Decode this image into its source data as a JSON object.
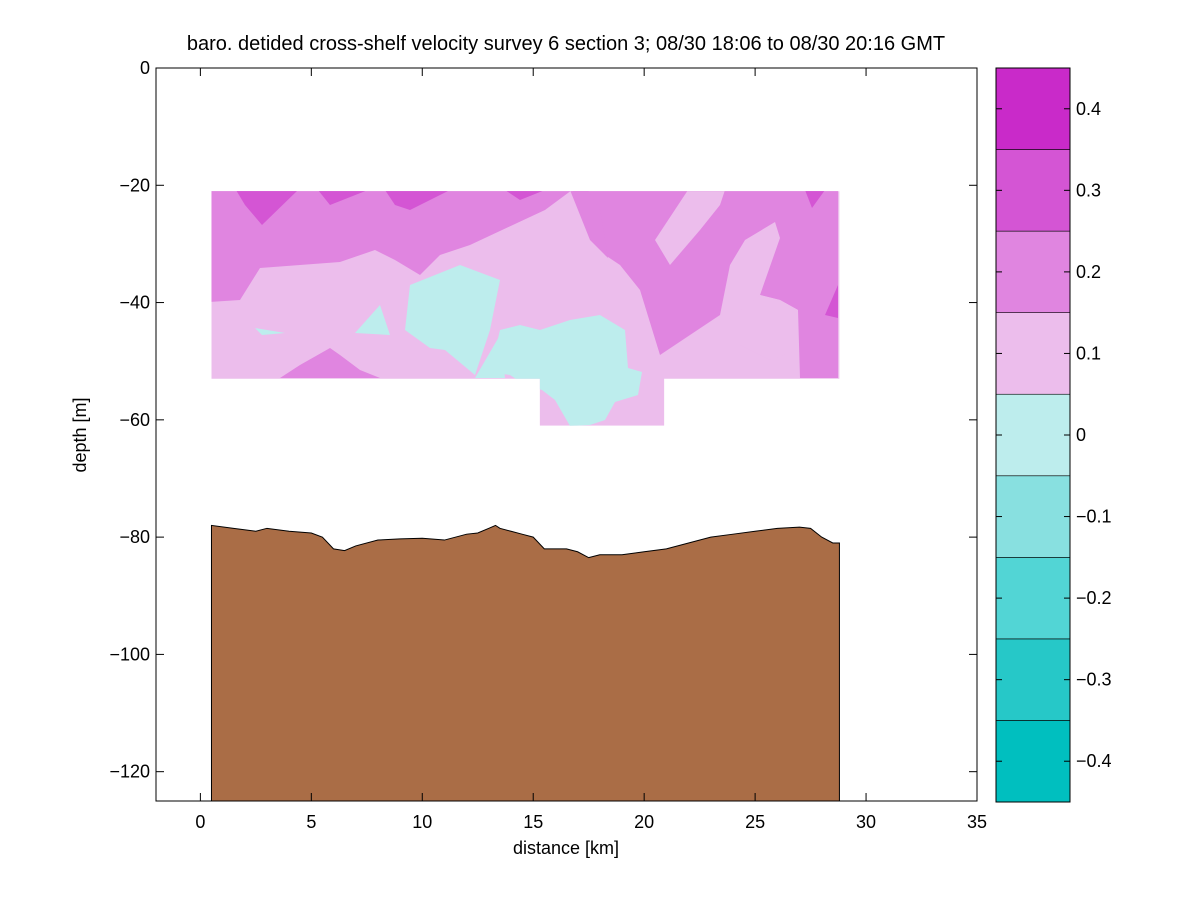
{
  "chart_data": {
    "type": "heatmap",
    "title": "baro. detided cross-shelf velocity survey 6 section 3; 08/30 18:06 to 08/30 20:16 GMT",
    "xlabel": "distance [km]",
    "ylabel": "depth [m]",
    "xlim": [
      -2,
      35
    ],
    "ylim": [
      -125,
      0
    ],
    "xticks": [
      0,
      5,
      10,
      15,
      20,
      25,
      30,
      35
    ],
    "yticks": [
      0,
      -20,
      -40,
      -60,
      -80,
      -100,
      -120
    ],
    "colorbar": {
      "range": [
        -0.45,
        0.45
      ],
      "ticks": [
        -0.4,
        -0.3,
        -0.2,
        -0.1,
        0,
        0.1,
        0.2,
        0.3,
        0.4
      ],
      "tick_labels": [
        "−0.4",
        "−0.3",
        "−0.2",
        "−0.1",
        "0",
        "0.1",
        "0.2",
        "0.3",
        "0.4"
      ],
      "levels": [
        -0.45,
        -0.35,
        -0.25,
        -0.15,
        -0.05,
        0.05,
        0.15,
        0.25,
        0.35,
        0.45
      ],
      "colors": [
        "#00bfbf",
        "#26c8c8",
        "#52d5d5",
        "#88e0e0",
        "#bdeded",
        "#ecbdec",
        "#e085e0",
        "#d455d4",
        "#c92ac9",
        "#bf00bf"
      ]
    },
    "bathymetry": {
      "color": "#aa6d46",
      "x": [
        0.5,
        1.5,
        2.5,
        3.0,
        4.0,
        5.0,
        5.5,
        6.0,
        6.5,
        7.0,
        8.0,
        9.0,
        10.0,
        11.0,
        12.0,
        12.5,
        13.0,
        13.3,
        13.5,
        14.0,
        14.5,
        15.0,
        15.5,
        16.5,
        17.0,
        17.5,
        18.0,
        19.0,
        20.0,
        21.0,
        22.0,
        23.0,
        24.0,
        25.0,
        26.0,
        27.0,
        27.5,
        28.0,
        28.5,
        28.8
      ],
      "depth": [
        -78,
        -78.5,
        -79,
        -78.5,
        -79,
        -79.3,
        -80,
        -82,
        -82.3,
        -81.5,
        -80.5,
        -80.3,
        -80.2,
        -80.5,
        -79.5,
        -79.3,
        -78.5,
        -78,
        -78.5,
        -79,
        -79.5,
        -80,
        -82,
        -82,
        -82.5,
        -83.5,
        -83,
        -83,
        -82.5,
        -82,
        -81,
        -80,
        -79.5,
        -79,
        -78.5,
        -78.3,
        -78.5,
        -80,
        -81,
        -81
      ]
    },
    "velocity_section": {
      "x_range": [
        0.5,
        28.8
      ],
      "main_depth_range": [
        -53,
        -21
      ],
      "deep_bin": {
        "x_range": [
          15.3,
          20.9
        ],
        "depth_range": [
          -61,
          -53
        ]
      }
    }
  }
}
